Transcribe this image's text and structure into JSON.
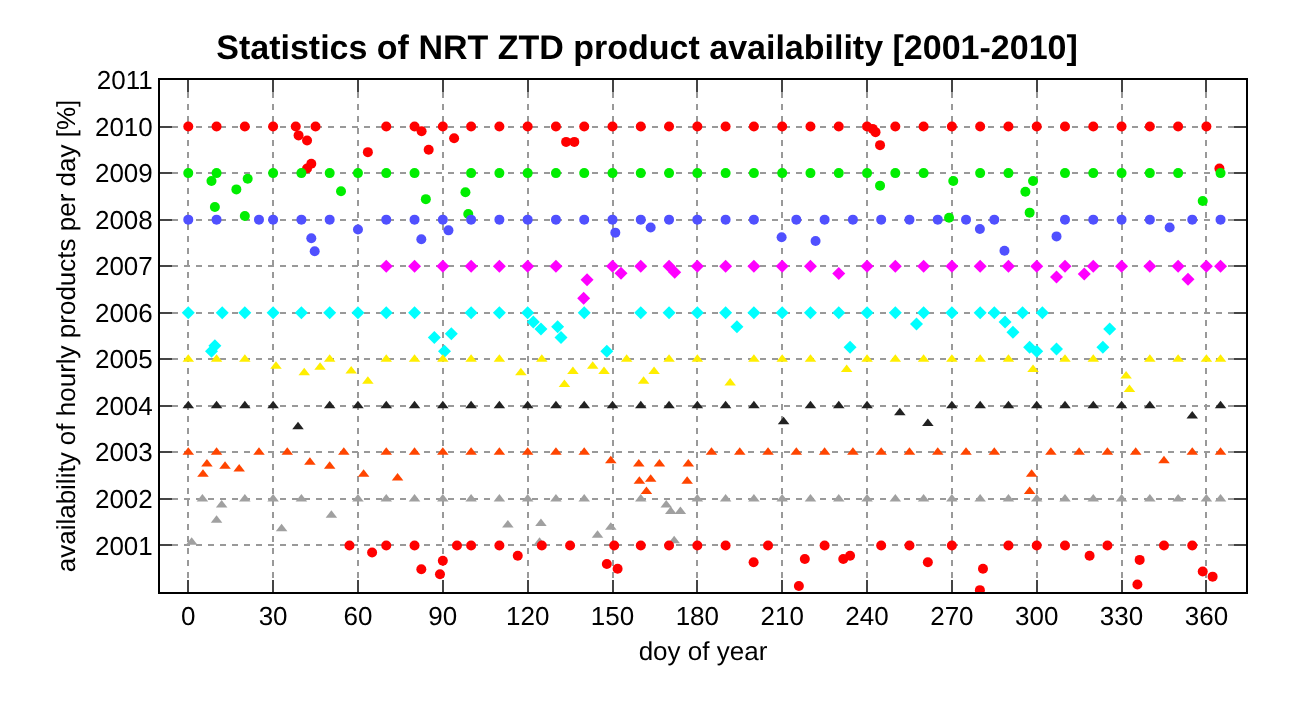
{
  "chart_data": {
    "type": "scatter",
    "title": "Statistics of NRT ZTD product availability [2001-2010]",
    "xlabel": "doy of year",
    "ylabel": "availability of hourly products per day [%]",
    "xlim": [
      -10,
      374
    ],
    "xticks": [
      0,
      30,
      60,
      90,
      120,
      150,
      180,
      210,
      240,
      270,
      300,
      330,
      360
    ],
    "ylim": [
      2000,
      2011
    ],
    "yticks": [
      2001,
      2002,
      2003,
      2004,
      2005,
      2006,
      2007,
      2008,
      2009,
      2010,
      2011
    ],
    "grid": true,
    "series": [
      {
        "color": "#ff0000",
        "marker": "circle",
        "x": [
          0,
          10,
          20,
          30,
          38,
          39,
          42,
          42,
          43.5,
          45,
          63.5,
          70,
          80,
          82.5,
          85,
          90,
          94,
          100,
          110,
          120,
          130,
          133.6,
          136.5,
          140,
          150,
          160,
          170,
          180,
          190,
          200,
          210,
          220,
          230,
          240,
          242,
          243,
          244.6,
          250,
          260,
          270,
          280,
          290,
          300,
          310,
          320,
          330,
          340,
          350,
          360,
          364.6
        ],
        "values": [
          2010,
          2010,
          2010,
          2010,
          2010,
          2009.81,
          2009.7,
          2009.1,
          2009.2,
          2010,
          2009.45,
          2010,
          2010,
          2009.9,
          2009.5,
          2010,
          2009.75,
          2010,
          2010,
          2010,
          2010,
          2009.67,
          2009.67,
          2010,
          2010,
          2010,
          2010,
          2010,
          2010,
          2010,
          2010,
          2010,
          2010,
          2010,
          2009.95,
          2009.88,
          2009.6,
          2010,
          2010,
          2010,
          2010,
          2010,
          2010,
          2010,
          2010,
          2010,
          2010,
          2010,
          2010,
          2009.1
        ]
      },
      {
        "color": "#00ee00",
        "marker": "circle",
        "x": [
          0,
          8.2,
          9.4,
          10,
          17,
          20,
          21,
          30,
          40,
          50,
          54,
          60,
          70,
          80,
          84,
          98,
          99,
          100,
          110,
          120,
          130,
          140,
          150,
          160,
          170,
          180,
          190,
          200,
          210,
          220,
          230,
          240,
          244.6,
          250,
          260,
          269,
          270.5,
          280,
          290,
          296,
          297.5,
          298.7,
          310,
          320,
          330,
          340,
          350,
          358.7,
          365
        ],
        "values": [
          2009,
          2008.83,
          2008.27,
          2009,
          2008.65,
          2008.08,
          2008.88,
          2009,
          2009,
          2009,
          2008.61,
          2009,
          2009,
          2009,
          2008.44,
          2008.59,
          2008.12,
          2009,
          2009,
          2009,
          2009,
          2009,
          2009,
          2009,
          2009,
          2009,
          2009,
          2009,
          2009,
          2009,
          2009,
          2009,
          2008.73,
          2009,
          2009,
          2008.04,
          2008.83,
          2009,
          2009,
          2008.6,
          2008.15,
          2008.83,
          2009,
          2009,
          2009,
          2009,
          2009,
          2008.4,
          2009
        ]
      },
      {
        "color": "#5050ff",
        "marker": "circle",
        "x": [
          0,
          10,
          25,
          30,
          40,
          43.5,
          44.7,
          50,
          60,
          70,
          80,
          82.4,
          90,
          92,
          100,
          110,
          120,
          130,
          140,
          150,
          151,
          160,
          163.5,
          170,
          180,
          190,
          200,
          209.8,
          215,
          221.8,
          225,
          235,
          245,
          255,
          265,
          275,
          279.9,
          285,
          288.6,
          307,
          310,
          320,
          330,
          340,
          347,
          355,
          365
        ],
        "values": [
          2008,
          2008,
          2008,
          2008,
          2008,
          2007.6,
          2007.32,
          2008,
          2007.79,
          2008,
          2008,
          2007.58,
          2008,
          2007.77,
          2008,
          2008,
          2008,
          2008,
          2008,
          2008,
          2007.72,
          2008,
          2007.83,
          2008,
          2008,
          2008,
          2008,
          2007.62,
          2008,
          2007.54,
          2008,
          2008,
          2008,
          2008,
          2008,
          2008,
          2007.8,
          2008,
          2007.33,
          2007.64,
          2008,
          2008,
          2008,
          2008,
          2007.83,
          2008,
          2008
        ]
      },
      {
        "color": "#ff00ff",
        "marker": "diamond",
        "x": [
          70,
          80,
          90,
          100,
          110,
          120,
          130,
          139.8,
          141,
          150,
          153,
          160,
          170,
          172,
          180,
          190,
          200,
          210,
          220,
          230,
          240,
          250,
          260,
          270,
          280,
          290,
          300,
          307,
          310,
          316.8,
          320,
          330,
          340,
          350,
          353.5,
          360,
          365
        ],
        "values": [
          2007,
          2007,
          2007,
          2007,
          2007,
          2007,
          2007,
          2006.31,
          2006.71,
          2007,
          2006.85,
          2007,
          2007,
          2006.87,
          2007,
          2007,
          2007,
          2007,
          2007,
          2006.84,
          2007,
          2007,
          2007,
          2007,
          2007,
          2007,
          2007,
          2006.77,
          2007,
          2006.83,
          2007,
          2007,
          2007,
          2007,
          2006.72,
          2007,
          2007
        ]
      },
      {
        "color": "#00ffff",
        "marker": "diamond",
        "x": [
          0,
          8.2,
          9.4,
          12,
          20,
          30,
          40,
          50,
          60,
          70,
          80,
          87,
          90.6,
          93,
          100,
          110,
          120,
          122,
          124.7,
          130.6,
          131.8,
          140,
          148,
          160,
          170,
          180,
          190,
          194,
          200,
          210,
          220,
          230,
          234,
          240,
          250,
          257.5,
          260,
          270,
          280,
          285,
          288.8,
          291.6,
          295,
          297.5,
          300,
          302,
          307,
          323.4,
          325.8
        ],
        "values": [
          2006,
          2005.17,
          2005.29,
          2006,
          2006,
          2006,
          2006,
          2006,
          2006,
          2006,
          2006,
          2005.47,
          2005.17,
          2005.55,
          2006,
          2006,
          2006,
          2005.8,
          2005.65,
          2005.7,
          2005.47,
          2006,
          2005.17,
          2006,
          2006,
          2006,
          2006,
          2005.7,
          2006,
          2006,
          2006,
          2006,
          2005.26,
          2006,
          2006,
          2005.76,
          2006,
          2006,
          2006,
          2006,
          2005.8,
          2005.58,
          2006,
          2005.26,
          2005.17,
          2006,
          2005.22,
          2005.26,
          2005.65
        ]
      },
      {
        "color": "#ffee00",
        "marker": "triangle",
        "x": [
          0,
          10,
          20,
          31,
          41,
          46.6,
          50,
          57.6,
          63.5,
          70,
          80,
          90,
          100,
          110,
          117.6,
          125,
          133,
          136,
          143,
          147,
          155,
          161,
          164.7,
          170,
          180,
          191.6,
          200,
          210,
          220,
          232.8,
          240,
          250,
          260,
          270,
          280,
          290,
          298.7,
          310,
          320,
          331.6,
          332.8,
          340,
          350,
          360,
          365
        ],
        "values": [
          2005,
          2005,
          2005,
          2004.85,
          2004.71,
          2004.83,
          2005,
          2004.75,
          2004.53,
          2005,
          2005,
          2005,
          2005,
          2005,
          2004.71,
          2005,
          2004.46,
          2004.74,
          2004.85,
          2004.74,
          2005,
          2004.53,
          2004.74,
          2005,
          2005,
          2004.49,
          2005,
          2005,
          2005,
          2004.78,
          2005,
          2005,
          2005,
          2005,
          2005,
          2005,
          2004.78,
          2005,
          2005,
          2004.64,
          2004.35,
          2005,
          2005,
          2005,
          2005
        ]
      },
      {
        "color": "#222222",
        "marker": "triangle",
        "x": [
          0,
          10,
          20,
          30,
          38.8,
          50,
          60,
          70,
          80,
          90,
          100,
          110,
          120,
          130,
          140,
          150,
          160,
          170,
          180,
          190,
          200,
          210.5,
          220,
          230,
          240,
          251.6,
          261.5,
          270,
          280,
          290,
          300,
          310,
          320,
          330,
          340,
          355,
          365
        ],
        "values": [
          2004,
          2004,
          2004,
          2004,
          2003.55,
          2004,
          2004,
          2004,
          2004,
          2004,
          2004,
          2004,
          2004,
          2004,
          2004,
          2004,
          2004,
          2004,
          2004,
          2004,
          2004,
          2003.66,
          2004,
          2004,
          2004,
          2003.85,
          2003.62,
          2004,
          2004,
          2004,
          2004,
          2004,
          2004,
          2004,
          2004,
          2003.78,
          2004
        ]
      },
      {
        "color": "#ff4500",
        "marker": "triangle",
        "x": [
          0,
          5.2,
          6.6,
          10,
          13,
          18,
          25,
          35,
          43,
          50,
          55,
          62,
          70,
          74,
          80,
          90,
          100,
          110,
          120,
          130,
          140,
          149.4,
          159.3,
          159.5,
          162,
          163.5,
          166.6,
          176.4,
          176.8,
          185,
          195,
          205,
          215,
          225,
          235,
          245,
          255,
          265,
          275,
          285,
          297.5,
          298.2,
          305,
          315,
          325,
          335,
          345,
          355,
          365
        ],
        "values": [
          2003,
          2002.53,
          2002.75,
          2003,
          2002.7,
          2002.64,
          2003,
          2003,
          2002.79,
          2002.7,
          2003,
          2002.53,
          2003,
          2002.45,
          2003,
          2003,
          2003,
          2003,
          2003,
          2003,
          2003,
          2002.82,
          2002.75,
          2002.38,
          2002.16,
          2002.42,
          2002.75,
          2002.38,
          2002.75,
          2003,
          2003,
          2003,
          2003,
          2003,
          2003,
          2003,
          2003,
          2003,
          2003,
          2003,
          2002.16,
          2002.53,
          2003,
          2003,
          2003,
          2003,
          2002.82,
          2003,
          2003
        ]
      },
      {
        "color": "#a0a0a0",
        "marker": "triangle",
        "x": [
          1.2,
          5,
          10,
          11.8,
          20,
          30,
          33,
          40,
          50.6,
          60,
          70,
          80,
          90,
          100,
          110,
          113,
          120,
          124.2,
          124.7,
          130,
          140,
          144.7,
          149.4,
          160,
          169,
          170.6,
          171.8,
          174,
          180,
          190,
          200,
          210,
          220,
          230,
          240,
          250,
          260,
          270,
          280,
          290,
          300,
          310,
          320,
          330,
          340,
          350,
          360,
          365
        ],
        "values": [
          2001.07,
          2002,
          2001.54,
          2001.87,
          2002,
          2002,
          2001.36,
          2002,
          2001.65,
          2002,
          2002,
          2002,
          2002,
          2002,
          2002,
          2001.44,
          2002,
          2001.07,
          2001.47,
          2002,
          2002,
          2001.22,
          2001.39,
          2002,
          2001.87,
          2001.73,
          2001.1,
          2001.73,
          2002,
          2002,
          2002,
          2002,
          2002,
          2002,
          2002,
          2002,
          2002,
          2002,
          2002,
          2002,
          2002,
          2002,
          2002,
          2002,
          2002,
          2002,
          2002,
          2002
        ]
      },
      {
        "color": "#ff0000",
        "marker": "circle",
        "x": [
          57,
          65,
          70,
          80,
          82.4,
          89,
          90,
          95,
          100,
          110,
          116.5,
          125,
          135,
          148,
          150.6,
          151.8,
          160,
          170,
          180,
          190,
          199.9,
          205,
          215.9,
          218,
          225,
          231.6,
          234,
          245,
          255,
          261.5,
          270,
          279.9,
          281,
          290,
          300,
          310,
          318.7,
          325,
          335.6,
          336.4,
          345,
          355,
          358.7,
          362.2
        ],
        "values": [
          2001,
          2000.85,
          2001,
          2001,
          2000.49,
          2000.38,
          2000.67,
          2001,
          2001,
          2001,
          2000.78,
          2001,
          2001,
          2000.6,
          2001,
          2000.5,
          2001,
          2001,
          2001,
          2001,
          2000.64,
          2001,
          2000.13,
          2000.71,
          2001,
          2000.71,
          2000.78,
          2001,
          2001,
          2000.64,
          2001,
          2000.04,
          2000.5,
          2001,
          2001,
          2001,
          2000.78,
          2001,
          2000.16,
          2000.69,
          2001,
          2001,
          2000.44,
          2000.33
        ]
      }
    ]
  }
}
